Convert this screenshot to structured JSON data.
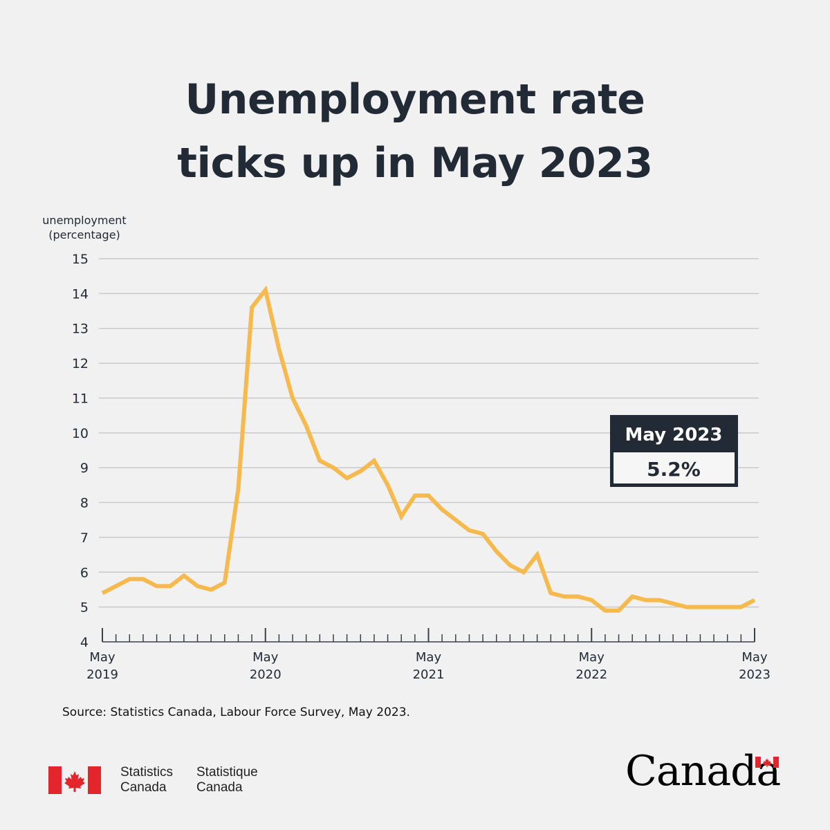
{
  "title": {
    "line1": "Unemployment rate",
    "line2": "ticks up in May 2023"
  },
  "chart_data": {
    "type": "line",
    "ylabel_line1": "unemployment",
    "ylabel_line2": "(percentage)",
    "ylim": [
      4,
      15
    ],
    "yticks": [
      4,
      5,
      6,
      7,
      8,
      9,
      10,
      11,
      12,
      13,
      14,
      15
    ],
    "grid": true,
    "x_tick_labels": [
      {
        "index": 0,
        "month": "May",
        "year": "2019"
      },
      {
        "index": 12,
        "month": "May",
        "year": "2020"
      },
      {
        "index": 24,
        "month": "May",
        "year": "2021"
      },
      {
        "index": 36,
        "month": "May",
        "year": "2022"
      },
      {
        "index": 48,
        "month": "May",
        "year": "2023"
      }
    ],
    "series": [
      {
        "color": "#f5b94d",
        "x": [
          "2019-05",
          "2019-06",
          "2019-07",
          "2019-08",
          "2019-09",
          "2019-10",
          "2019-11",
          "2019-12",
          "2020-01",
          "2020-02",
          "2020-03",
          "2020-04",
          "2020-05",
          "2020-06",
          "2020-07",
          "2020-08",
          "2020-09",
          "2020-10",
          "2020-11",
          "2020-12",
          "2021-01",
          "2021-02",
          "2021-03",
          "2021-04",
          "2021-05",
          "2021-06",
          "2021-07",
          "2021-08",
          "2021-09",
          "2021-10",
          "2021-11",
          "2021-12",
          "2022-01",
          "2022-02",
          "2022-03",
          "2022-04",
          "2022-05",
          "2022-06",
          "2022-07",
          "2022-08",
          "2022-09",
          "2022-10",
          "2022-11",
          "2022-12",
          "2023-01",
          "2023-02",
          "2023-03",
          "2023-04",
          "2023-05"
        ],
        "values": [
          5.4,
          5.6,
          5.8,
          5.8,
          5.6,
          5.6,
          5.9,
          5.6,
          5.5,
          5.7,
          8.4,
          13.6,
          14.1,
          12.4,
          11.0,
          10.2,
          9.2,
          9.0,
          8.7,
          8.9,
          9.2,
          8.5,
          7.6,
          8.2,
          8.2,
          7.8,
          7.5,
          7.2,
          7.1,
          6.6,
          6.2,
          6.0,
          6.5,
          5.4,
          5.3,
          5.3,
          5.2,
          4.9,
          4.9,
          5.3,
          5.2,
          5.2,
          5.1,
          5.0,
          5.0,
          5.0,
          5.0,
          5.0,
          5.2
        ]
      }
    ],
    "callout": {
      "header": "May 2023",
      "value": "5.2%"
    }
  },
  "source": "Source: Statistics Canada, Labour Force Survey, May 2023.",
  "footer": {
    "signature_en_1": "Statistics",
    "signature_en_2": "Canada",
    "signature_fr_1": "Statistique",
    "signature_fr_2": "Canada",
    "wordmark": "Canada"
  },
  "colors": {
    "background": "#f1f1f1",
    "text": "#222a35",
    "line": "#f5b94d",
    "grid": "#c9c9c9",
    "flag_red": "#e3262b"
  }
}
